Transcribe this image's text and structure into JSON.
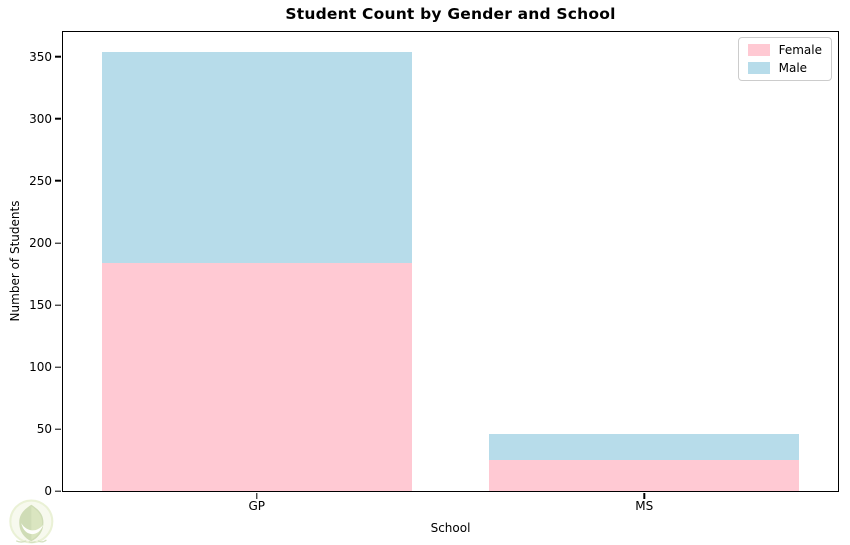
{
  "chart_data": {
    "type": "bar",
    "stacked": true,
    "title": "Student Count by Gender and School",
    "xlabel": "School",
    "ylabel": "Number of Students",
    "categories": [
      "GP",
      "MS"
    ],
    "series": [
      {
        "name": "Female",
        "color": "#ffc9d3",
        "values": [
          184,
          25
        ]
      },
      {
        "name": "Male",
        "color": "#b7dcea",
        "values": [
          170,
          21
        ]
      }
    ],
    "ylim": [
      0,
      370
    ],
    "yticks": [
      0,
      50,
      100,
      150,
      200,
      250,
      300,
      350
    ],
    "bar_width_fraction": 0.8,
    "grid": false,
    "legend_position": "upper right"
  },
  "watermark": {
    "name": "green-leaf-badge-logo"
  }
}
